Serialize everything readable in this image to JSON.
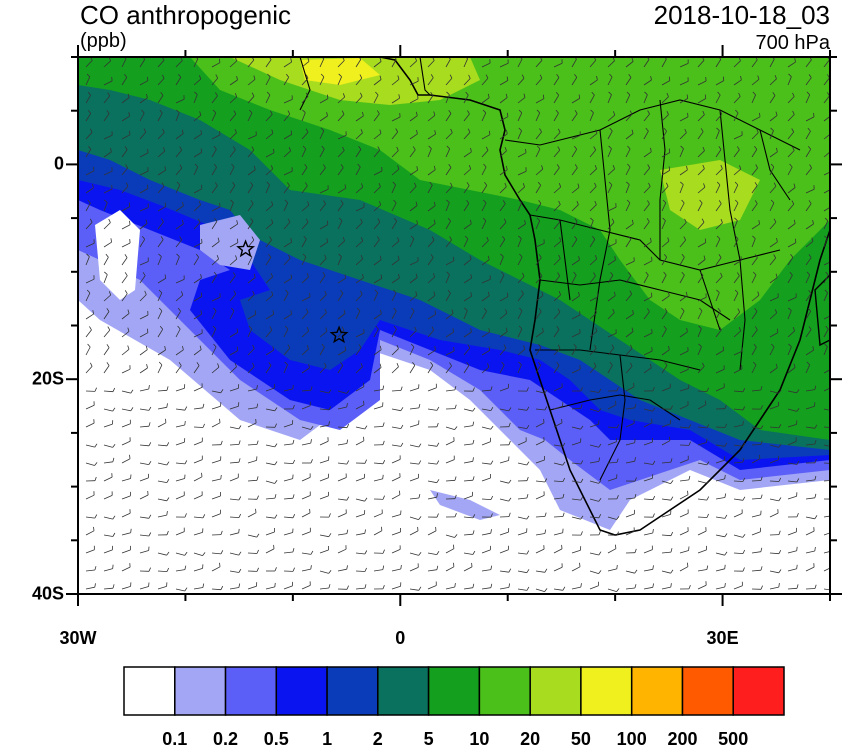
{
  "title": "CO anthropogenic",
  "units": "(ppb)",
  "datetime": "2018-10-18_03",
  "level": "700 hPa",
  "map": {
    "lon_range": [
      -30,
      40
    ],
    "lat_range": [
      -40,
      10
    ],
    "x_tick_labels": [
      {
        "lon": -30,
        "label": "30W"
      },
      {
        "lon": 0,
        "label": "0"
      },
      {
        "lon": 30,
        "label": "30E"
      }
    ],
    "y_tick_labels": [
      {
        "lat": 0,
        "label": "0"
      },
      {
        "lat": -20,
        "label": "20S"
      },
      {
        "lat": -40,
        "label": "40S"
      }
    ],
    "markers": [
      {
        "type": "star",
        "lon": -14.4,
        "lat": -7.9
      },
      {
        "type": "star",
        "lon": -5.7,
        "lat": -15.9
      }
    ]
  },
  "colorbar": {
    "colors": [
      "#ffffff",
      "#a3a6f5",
      "#5b5ef7",
      "#0a14f0",
      "#0a3cba",
      "#0a715e",
      "#14a01e",
      "#4cc01a",
      "#a8dc1e",
      "#f0f01e",
      "#ffb400",
      "#ff5a00",
      "#ff1e1e"
    ],
    "labels": [
      "0.1",
      "0.2",
      "0.5",
      "1",
      "2",
      "5",
      "10",
      "20",
      "50",
      "100",
      "200",
      "500"
    ]
  }
}
